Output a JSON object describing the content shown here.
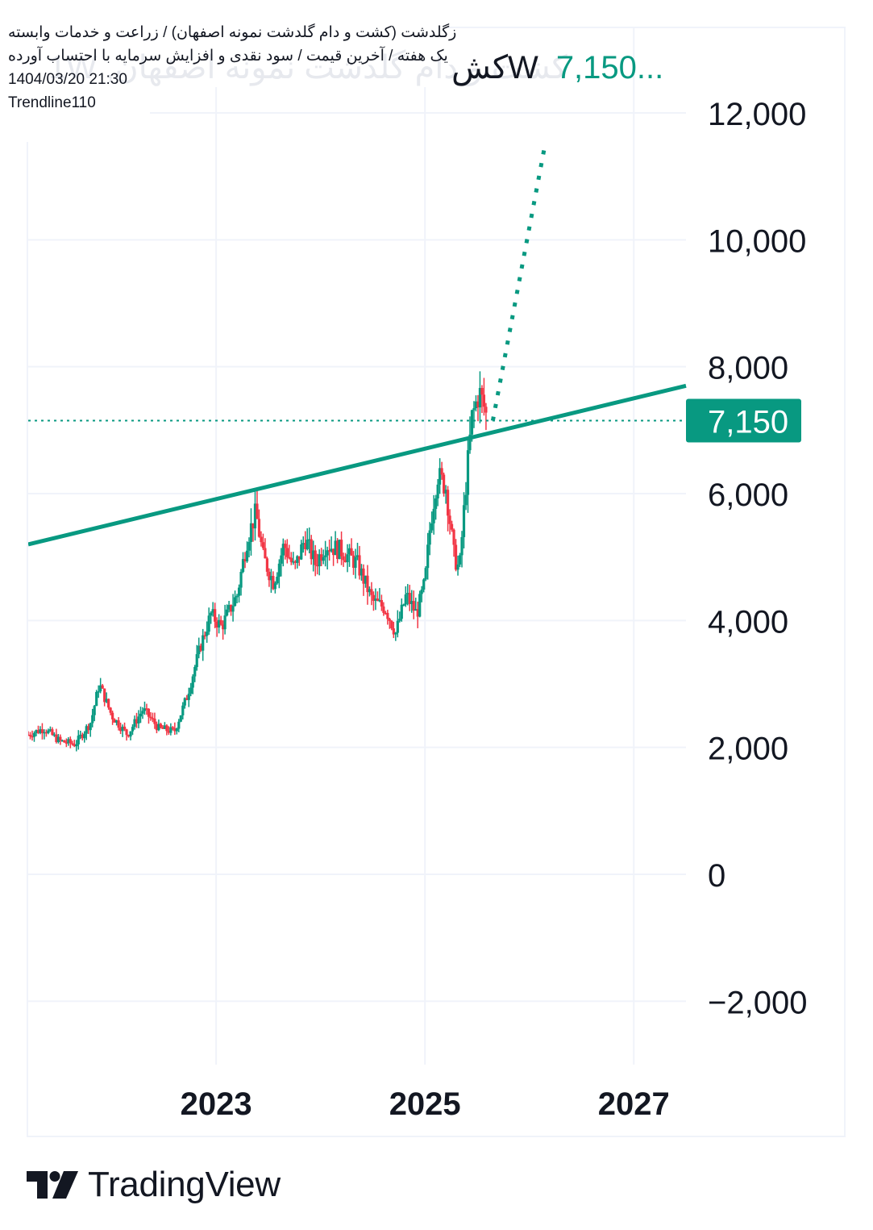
{
  "header": {
    "title_line": "زگلدشت (کشت و دام گلدشت نمونه اصفهان) / زراعت و خدمات وابسته",
    "subtitle_line": "یک هفته / آخرین قیمت / سود نقدی و افزایش سرمایه با احتساب آورده",
    "datetime": "1404/03/20 21:30",
    "author": "Trendline110",
    "symbol_truncated": "کشت و دام گلدشت نمونه اصفهان, 1W",
    "last_price_head": "7,150..."
  },
  "branding": {
    "logo_text": "TradingView"
  },
  "colors": {
    "up": "#089981",
    "down": "#f23645",
    "trendline": "#089981",
    "grid": "#f0f3fa",
    "price_label_bg": "#089981",
    "text": "#131722"
  },
  "chart_data": {
    "type": "candlestick",
    "interval": "1W",
    "x_axis": {
      "range": [
        2021.2,
        2027.5
      ],
      "ticks": [
        2023,
        2025,
        2027
      ],
      "tick_labels": [
        "2023",
        "2025",
        "2027"
      ]
    },
    "y_axis": {
      "range": [
        -3000,
        13000
      ],
      "ticks": [
        -2000,
        0,
        2000,
        4000,
        6000,
        8000,
        10000,
        12000
      ],
      "tick_labels": [
        "−2,000",
        "0",
        "2,000",
        "4,000",
        "6,000",
        "8,000",
        "10,000",
        "12,000"
      ]
    },
    "last_price": 7150,
    "last_price_label": "7,150",
    "price_path": [
      [
        2021.2,
        2200
      ],
      [
        2021.35,
        2300
      ],
      [
        2021.5,
        2100
      ],
      [
        2021.65,
        2050
      ],
      [
        2021.8,
        2400
      ],
      [
        2021.88,
        3000
      ],
      [
        2022.0,
        2500
      ],
      [
        2022.15,
        2200
      ],
      [
        2022.3,
        2600
      ],
      [
        2022.45,
        2300
      ],
      [
        2022.6,
        2250
      ],
      [
        2022.72,
        2800
      ],
      [
        2022.85,
        3600
      ],
      [
        2022.95,
        4100
      ],
      [
        2023.05,
        3900
      ],
      [
        2023.2,
        4400
      ],
      [
        2023.3,
        5300
      ],
      [
        2023.38,
        5700
      ],
      [
        2023.45,
        5000
      ],
      [
        2023.55,
        4600
      ],
      [
        2023.65,
        5200
      ],
      [
        2023.75,
        4800
      ],
      [
        2023.85,
        5300
      ],
      [
        2023.95,
        4900
      ],
      [
        2024.05,
        5200
      ],
      [
        2024.2,
        5100
      ],
      [
        2024.35,
        4900
      ],
      [
        2024.5,
        4300
      ],
      [
        2024.62,
        4200
      ],
      [
        2024.72,
        3800
      ],
      [
        2024.82,
        4400
      ],
      [
        2024.92,
        4100
      ],
      [
        2025.0,
        4600
      ],
      [
        2025.05,
        5500
      ],
      [
        2025.12,
        6300
      ],
      [
        2025.2,
        6100
      ],
      [
        2025.28,
        5000
      ],
      [
        2025.33,
        4800
      ],
      [
        2025.4,
        6300
      ],
      [
        2025.45,
        7200
      ],
      [
        2025.52,
        7600
      ],
      [
        2025.56,
        7400
      ],
      [
        2025.6,
        7150
      ]
    ],
    "trendline": {
      "start": [
        2021.2,
        5200
      ],
      "end": [
        2027.5,
        7700
      ],
      "style": "solid"
    },
    "projection": {
      "start": [
        2025.65,
        7150
      ],
      "end": [
        2026.15,
        11500
      ],
      "style": "dotted"
    },
    "price_line": {
      "value": 7150,
      "style": "dotted"
    },
    "grid": true,
    "legend": "none"
  }
}
